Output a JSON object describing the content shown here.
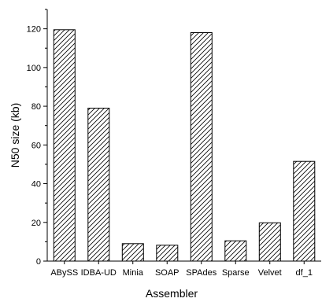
{
  "chart_data": {
    "type": "bar",
    "categories": [
      "ABySS",
      "IDBA-UD",
      "Minia",
      "SOAP",
      "SPAdes",
      "Sparse",
      "Velvet",
      "df_1"
    ],
    "values": [
      119.5,
      79,
      9,
      8.2,
      118,
      10.5,
      19.8,
      51.5
    ],
    "xlabel": "Assembler",
    "ylabel": "N50 size (kb)",
    "ylim": [
      0,
      130
    ],
    "yticks": [
      0,
      20,
      40,
      60,
      80,
      100,
      120
    ],
    "grid": false,
    "bar_fill": "diagonal-hatch",
    "colors": {
      "bar_stroke": "#000000",
      "axis": "#000000",
      "background": "#ffffff"
    }
  }
}
